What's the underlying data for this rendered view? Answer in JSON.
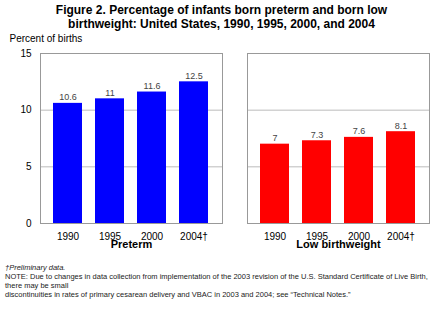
{
  "chart_data": {
    "type": "bar",
    "title": "Figure 2. Percentage of infants born preterm and born low\nbirthweight: United States, 1990, 1995, 2000, and 2004",
    "ylabel": "Percent of births",
    "categories": [
      "1990",
      "1995",
      "2000",
      "2004†"
    ],
    "series": [
      {
        "name": "Preterm",
        "color": "#0000FF",
        "values": [
          10.6,
          11.0,
          11.6,
          12.5
        ]
      },
      {
        "name": "Low birthweight",
        "color": "#FF0000",
        "values": [
          7.0,
          7.3,
          7.6,
          8.1
        ]
      }
    ],
    "ylim": [
      0,
      15
    ],
    "yticks": [
      0,
      5,
      10,
      15
    ],
    "grid": true,
    "data_labels": true,
    "footnotes": [
      "†Preliminary data.",
      "NOTE: Due to changes in data collection from implementation of the 2003 revision of the U.S. Standard Certificate of Live Birth, there may be small",
      "discontinuities in rates of primary cesarean delivery and VBAC in 2003 and 2004; see “Technical Notes.”"
    ]
  }
}
